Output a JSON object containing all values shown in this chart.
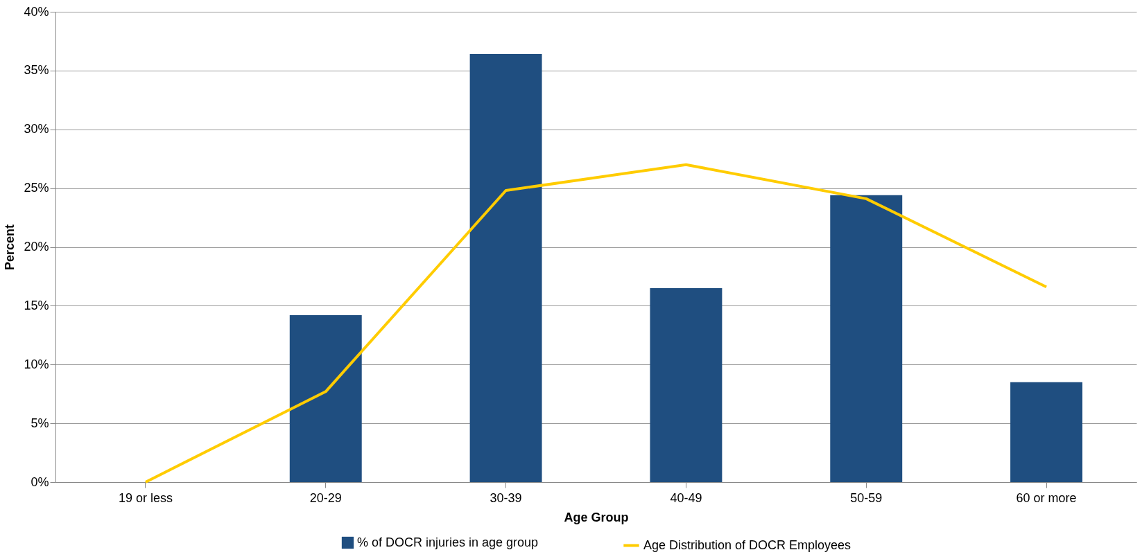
{
  "chart_data": {
    "type": "bar",
    "xlabel": "Age Group",
    "ylabel": "Percent",
    "categories": [
      "19 or less",
      "20-29",
      "30-39",
      "40-49",
      "50-59",
      "60 or more"
    ],
    "series": [
      {
        "name": "% of DOCR injuries in age group",
        "color": "#1f4e80",
        "values": [
          0,
          14.2,
          36.4,
          16.5,
          24.4,
          8.5
        ]
      },
      {
        "name": "Age Distribution of DOCR Employees",
        "type": "line",
        "color": "#ffcc00",
        "values": [
          0,
          7.7,
          24.8,
          27.0,
          24.1,
          16.6
        ]
      }
    ],
    "ylim": [
      0,
      40
    ],
    "yticks": [
      {
        "value": 0,
        "label": "0%"
      },
      {
        "value": 5,
        "label": "5%"
      },
      {
        "value": 10,
        "label": "10%"
      },
      {
        "value": 15,
        "label": "15%"
      },
      {
        "value": 20,
        "label": "20%"
      },
      {
        "value": 25,
        "label": "25%"
      },
      {
        "value": 30,
        "label": "30%"
      },
      {
        "value": 35,
        "label": "35%"
      },
      {
        "value": 40,
        "label": "40%"
      }
    ],
    "grid": "y",
    "legend": "bottom",
    "marker": "none",
    "line_style": "solid"
  }
}
